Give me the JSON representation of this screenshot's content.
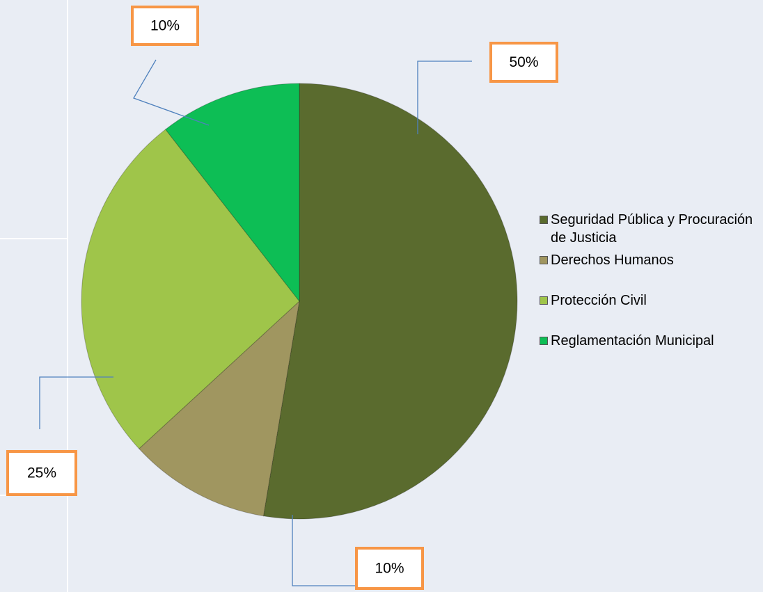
{
  "chart_data": {
    "type": "pie",
    "categories": [
      "Seguridad Pública y Procuración de Justicia",
      "Derechos Humanos",
      "Protección Civil",
      "Reglamentación Municipal"
    ],
    "values": [
      50,
      10,
      25,
      10
    ],
    "value_labels": [
      "50%",
      "10%",
      "25%",
      "10%"
    ],
    "colors": [
      "#5a6b2e",
      "#a09660",
      "#9fc54a",
      "#0dbe55"
    ],
    "legend": "right"
  }
}
